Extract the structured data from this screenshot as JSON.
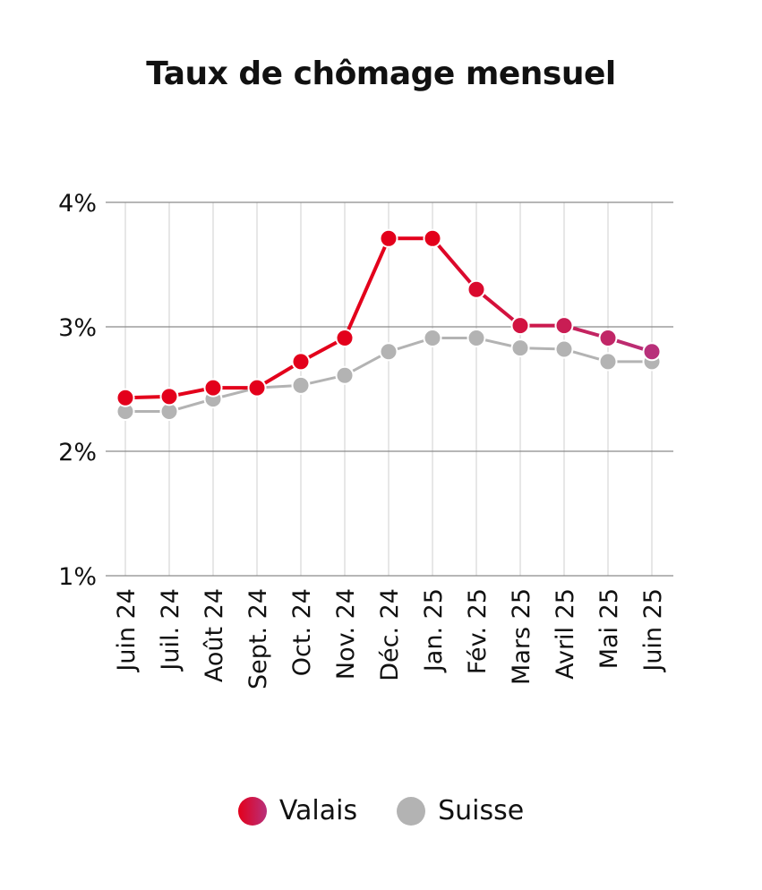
{
  "colors": {
    "valais_start": "#e3001b",
    "valais_end": "#b8307a",
    "suisse": "#b3b3b3",
    "grid_major": "#8a8a8a",
    "grid_minor": "#cfcfcf"
  },
  "chart_data": {
    "type": "line",
    "title": "Taux de chômage mensuel",
    "xlabel": "",
    "ylabel": "",
    "categories": [
      "Juin 24",
      "Juil. 24",
      "Août 24",
      "Sept. 24",
      "Oct. 24",
      "Nov. 24",
      "Déc. 24",
      "Jan. 25",
      "Fév. 25",
      "Mars 25",
      "Avril 25",
      "Mai 25",
      "Juin 25"
    ],
    "ylim": [
      1,
      4
    ],
    "yticks": [
      1,
      2,
      3,
      4
    ],
    "ytick_labels": [
      "1%",
      "2%",
      "3%",
      "4%"
    ],
    "grid": true,
    "legend_position": "bottom",
    "series": [
      {
        "name": "Valais",
        "values": [
          2.43,
          2.44,
          2.51,
          2.51,
          2.72,
          2.91,
          3.71,
          3.71,
          3.3,
          3.01,
          3.01,
          2.91,
          2.8
        ]
      },
      {
        "name": "Suisse",
        "values": [
          2.32,
          2.32,
          2.42,
          2.51,
          2.53,
          2.61,
          2.8,
          2.91,
          2.91,
          2.83,
          2.82,
          2.72,
          2.72
        ]
      }
    ]
  }
}
